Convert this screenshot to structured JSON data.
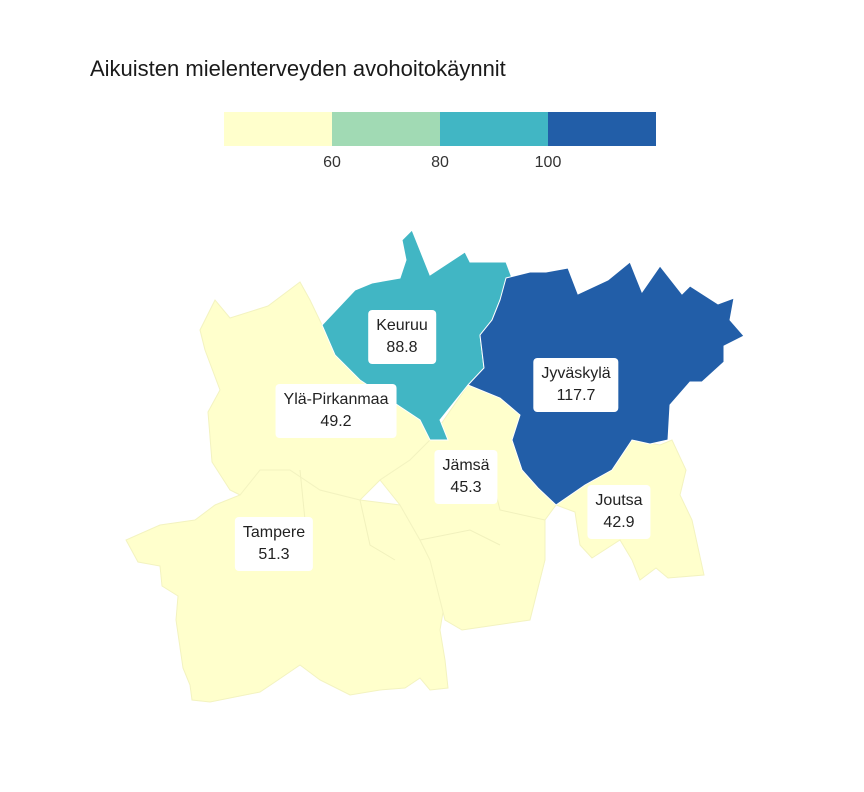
{
  "title": "Aikuisten mielenterveyden avohoitokäynnit",
  "legend": {
    "colors": [
      "#ffffcc",
      "#a1dab4",
      "#41b6c4",
      "#225ea8"
    ],
    "ticks": [
      "60",
      "80",
      "100"
    ]
  },
  "regions": [
    {
      "name": "Keuruu",
      "value": "88.8",
      "color": "#41b6c4"
    },
    {
      "name": "Jyväskylä",
      "value": "117.7",
      "color": "#225ea8"
    },
    {
      "name": "Ylä-Pirkanmaa",
      "value": "49.2",
      "color": "#ffffcc"
    },
    {
      "name": "Jämsä",
      "value": "45.3",
      "color": "#ffffcc"
    },
    {
      "name": "Joutsa",
      "value": "42.9",
      "color": "#ffffcc"
    },
    {
      "name": "Tampere",
      "value": "51.3",
      "color": "#ffffcc"
    }
  ]
}
